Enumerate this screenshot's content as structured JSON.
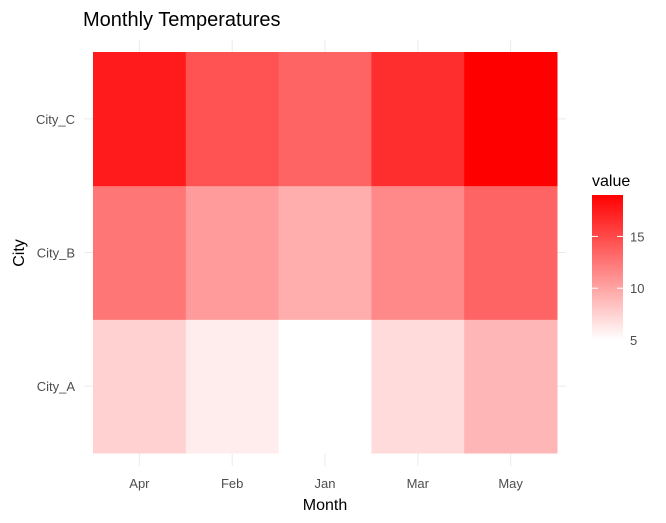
{
  "chart_data": {
    "type": "heatmap",
    "title": "Monthly Temperatures",
    "xlabel": "Month",
    "ylabel": "City",
    "x_categories": [
      "Apr",
      "Feb",
      "Jan",
      "Mar",
      "May"
    ],
    "y_categories": [
      "City_A",
      "City_B",
      "City_C"
    ],
    "values": [
      {
        "y": "City_A",
        "x": "Apr",
        "value": 7.5
      },
      {
        "y": "City_A",
        "x": "Feb",
        "value": 6
      },
      {
        "y": "City_A",
        "x": "Jan",
        "value": 5
      },
      {
        "y": "City_A",
        "x": "Mar",
        "value": 7
      },
      {
        "y": "City_A",
        "x": "May",
        "value": 9
      },
      {
        "y": "City_B",
        "x": "Apr",
        "value": 12.5
      },
      {
        "y": "City_B",
        "x": "Feb",
        "value": 10.5
      },
      {
        "y": "City_B",
        "x": "Jan",
        "value": 9.5
      },
      {
        "y": "City_B",
        "x": "Mar",
        "value": 11.5
      },
      {
        "y": "City_B",
        "x": "May",
        "value": 13.5
      },
      {
        "y": "City_C",
        "x": "Apr",
        "value": 17.5
      },
      {
        "y": "City_C",
        "x": "Feb",
        "value": 14.5
      },
      {
        "y": "City_C",
        "x": "Jan",
        "value": 13.5
      },
      {
        "y": "City_C",
        "x": "Mar",
        "value": 16.5
      },
      {
        "y": "City_C",
        "x": "May",
        "value": 19
      }
    ],
    "color_scale": {
      "low": "#ffffff",
      "high": "#ff0000",
      "min": 5,
      "max": 19
    },
    "legend": {
      "title": "value",
      "ticks": [
        5,
        10,
        15
      ],
      "position": "right"
    },
    "grid": true
  }
}
